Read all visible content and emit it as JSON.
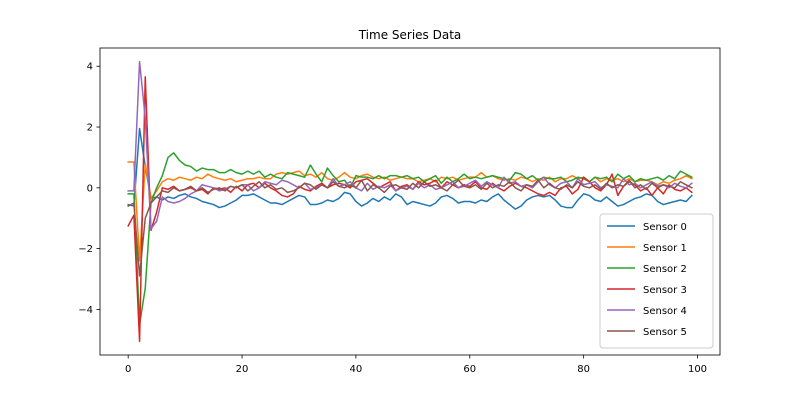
{
  "chart_data": {
    "type": "line",
    "title": "Time Series Data",
    "xlabel": "",
    "ylabel": "",
    "xlim": [
      -4.95,
      103.95
    ],
    "ylim": [
      -5.5,
      4.6
    ],
    "xticks": [
      0,
      20,
      40,
      60,
      80,
      100
    ],
    "yticks": [
      -4,
      -2,
      0,
      2,
      4
    ],
    "grid": false,
    "legend_position": "lower-right",
    "series": [
      {
        "name": "Sensor 0",
        "color": "#1f77b4",
        "values": [
          -0.55,
          -0.6,
          1.95,
          0.7,
          -0.35,
          -0.3,
          -0.4,
          -0.3,
          -0.35,
          -0.25,
          -0.2,
          -0.3,
          -0.35,
          -0.45,
          -0.5,
          -0.55,
          -0.65,
          -0.6,
          -0.5,
          -0.4,
          -0.25,
          -0.25,
          -0.2,
          -0.3,
          -0.4,
          -0.5,
          -0.5,
          -0.55,
          -0.45,
          -0.35,
          -0.25,
          -0.3,
          -0.55,
          -0.55,
          -0.5,
          -0.4,
          -0.45,
          -0.35,
          -0.15,
          -0.2,
          -0.45,
          -0.6,
          -0.5,
          -0.35,
          -0.45,
          -0.3,
          -0.4,
          -0.2,
          -0.3,
          -0.55,
          -0.45,
          -0.5,
          -0.55,
          -0.6,
          -0.5,
          -0.3,
          -0.25,
          -0.35,
          -0.5,
          -0.45,
          -0.45,
          -0.5,
          -0.4,
          -0.45,
          -0.3,
          -0.2,
          -0.4,
          -0.55,
          -0.7,
          -0.6,
          -0.4,
          -0.3,
          -0.25,
          -0.3,
          -0.25,
          -0.4,
          -0.6,
          -0.65,
          -0.65,
          -0.4,
          -0.2,
          -0.25,
          -0.4,
          -0.45,
          -0.3,
          -0.45,
          -0.6,
          -0.55,
          -0.45,
          -0.35,
          -0.3,
          -0.2,
          -0.25,
          -0.45,
          -0.55,
          -0.5,
          -0.45,
          -0.4,
          -0.45,
          -0.25
        ]
      },
      {
        "name": "Sensor 1",
        "color": "#ff7f0e",
        "values": [
          0.85,
          0.85,
          -2.4,
          0.8,
          -0.35,
          -0.1,
          0.2,
          0.3,
          0.25,
          0.35,
          0.3,
          0.25,
          0.35,
          0.3,
          0.45,
          0.35,
          0.3,
          0.25,
          0.3,
          0.2,
          0.25,
          0.3,
          0.3,
          0.35,
          0.3,
          0.3,
          0.45,
          0.5,
          0.45,
          0.5,
          0.55,
          0.4,
          0.45,
          0.35,
          0.5,
          0.3,
          0.25,
          0.35,
          0.5,
          0.35,
          0.3,
          0.4,
          0.45,
          0.35,
          0.3,
          0.35,
          0.25,
          0.3,
          0.35,
          0.3,
          0.3,
          0.2,
          0.25,
          0.3,
          0.2,
          0.35,
          0.3,
          0.35,
          0.25,
          0.3,
          0.35,
          0.35,
          0.5,
          0.35,
          0.4,
          0.3,
          0.25,
          0.3,
          0.25,
          0.35,
          0.3,
          0.2,
          0.3,
          0.25,
          0.35,
          0.2,
          0.3,
          0.3,
          0.4,
          0.3,
          0.35,
          0.2,
          0.35,
          0.2,
          0.3,
          0.25,
          0.3,
          0.2,
          0.3,
          0.2,
          0.25,
          0.25,
          0.2,
          0.1,
          0.2,
          0.15,
          0.25,
          0.3,
          0.4,
          0.3
        ]
      },
      {
        "name": "Sensor 2",
        "color": "#2ca02c",
        "values": [
          -0.2,
          -0.2,
          -4.5,
          -3.3,
          -0.5,
          0.0,
          0.4,
          1.0,
          1.15,
          0.9,
          0.75,
          0.7,
          0.55,
          0.65,
          0.6,
          0.6,
          0.5,
          0.5,
          0.6,
          0.5,
          0.45,
          0.55,
          0.45,
          0.55,
          0.35,
          0.45,
          0.35,
          0.3,
          0.5,
          0.45,
          0.4,
          0.35,
          0.75,
          0.45,
          0.2,
          0.65,
          0.4,
          0.2,
          0.25,
          0.0,
          0.4,
          0.35,
          0.35,
          0.3,
          0.4,
          0.3,
          0.4,
          0.4,
          0.35,
          0.4,
          0.3,
          0.35,
          0.2,
          0.3,
          0.4,
          0.15,
          0.35,
          0.2,
          0.3,
          0.45,
          0.3,
          0.35,
          0.3,
          0.35,
          0.4,
          0.35,
          0.3,
          0.25,
          0.5,
          0.45,
          0.3,
          0.4,
          0.25,
          0.35,
          0.3,
          0.3,
          0.35,
          0.2,
          0.25,
          0.35,
          0.3,
          0.2,
          0.35,
          0.3,
          0.35,
          0.2,
          0.45,
          0.3,
          0.4,
          0.2,
          0.3,
          0.25,
          0.3,
          0.35,
          0.25,
          0.4,
          0.3,
          0.55,
          0.45,
          0.35
        ]
      },
      {
        "name": "Sensor 3",
        "color": "#d62728",
        "values": [
          -1.25,
          -0.9,
          -5.05,
          3.65,
          -1.4,
          -0.8,
          0.0,
          -0.05,
          0.05,
          -0.1,
          -0.05,
          0.0,
          -0.1,
          -0.05,
          -0.2,
          0.0,
          -0.05,
          0.0,
          -0.15,
          0.05,
          -0.1,
          0.1,
          0.15,
          0.0,
          0.15,
          0.0,
          -0.1,
          -0.25,
          -0.3,
          -0.2,
          0.05,
          -0.05,
          -0.1,
          0.05,
          0.15,
          0.0,
          0.1,
          0.15,
          0.1,
          0.0,
          0.2,
          0.25,
          0.3,
          0.15,
          0.0,
          0.1,
          0.2,
          -0.1,
          0.05,
          0.1,
          -0.05,
          0.2,
          0.1,
          0.15,
          0.25,
          0.0,
          0.2,
          0.1,
          0.0,
          0.1,
          0.05,
          0.2,
          0.0,
          -0.05,
          0.15,
          0.0,
          -0.1,
          0.05,
          0.15,
          0.05,
          0.0,
          -0.1,
          -0.2,
          -0.25,
          -0.15,
          -0.25,
          0.0,
          0.05,
          -0.2,
          -0.05,
          0.35,
          0.2,
          0.0,
          -0.1,
          0.1,
          0.45,
          -0.25,
          0.05,
          0.2,
          0.1,
          -0.1,
          0.0,
          -0.25,
          0.0,
          -0.2,
          0.1,
          -0.05,
          -0.1,
          0.0,
          -0.15
        ]
      },
      {
        "name": "Sensor 4",
        "color": "#9467bd",
        "values": [
          -0.1,
          -0.1,
          4.15,
          2.3,
          -1.35,
          -1.1,
          -0.3,
          -0.45,
          -0.5,
          -0.45,
          -0.35,
          -0.2,
          -0.1,
          0.1,
          0.05,
          0.0,
          -0.1,
          -0.05,
          0.05,
          0.0,
          0.1,
          0.1,
          -0.1,
          0.0,
          0.2,
          0.15,
          0.1,
          0.25,
          0.2,
          0.1,
          0.0,
          0.15,
          -0.05,
          0.0,
          0.1,
          0.0,
          0.3,
          0.05,
          0.1,
          0.2,
          0.0,
          -0.1,
          0.15,
          -0.05,
          0.05,
          0.0,
          0.1,
          -0.1,
          0.0,
          0.05,
          -0.05,
          0.15,
          0.0,
          0.1,
          -0.05,
          0.0,
          0.1,
          0.2,
          0.0,
          0.05,
          0.15,
          0.25,
          0.05,
          0.2,
          0.1,
          0.0,
          0.35,
          0.15,
          0.2,
          0.05,
          0.1,
          0.0,
          0.2,
          0.35,
          0.1,
          0.0,
          0.15,
          0.2,
          0.0,
          0.3,
          0.1,
          0.15,
          0.2,
          0.0,
          0.1,
          0.05,
          0.0,
          0.3,
          0.1,
          0.15,
          0.0,
          0.1,
          0.2,
          0.05,
          0.1,
          0.0,
          0.15,
          0.05,
          0.0,
          0.15
        ]
      },
      {
        "name": "Sensor 5",
        "color": "#8c564b",
        "values": [
          -0.6,
          -0.5,
          -2.9,
          -1.0,
          -0.5,
          -0.3,
          -0.1,
          -0.15,
          0.0,
          -0.1,
          -0.05,
          0.05,
          -0.1,
          0.0,
          -0.15,
          -0.05,
          0.0,
          -0.1,
          0.05,
          0.0,
          0.1,
          -0.1,
          0.05,
          0.2,
          0.0,
          0.1,
          -0.05,
          0.0,
          -0.15,
          -0.1,
          0.0,
          0.15,
          0.1,
          -0.05,
          0.1,
          0.0,
          0.2,
          0.05,
          0.0,
          0.1,
          0.0,
          0.25,
          -0.1,
          0.1,
          0.0,
          -0.15,
          0.05,
          0.1,
          0.0,
          -0.05,
          0.15,
          0.0,
          0.2,
          0.05,
          0.1,
          0.0,
          -0.1,
          0.1,
          0.25,
          0.05,
          0.0,
          0.1,
          -0.05,
          0.15,
          0.0,
          0.1,
          0.05,
          0.2,
          0.0,
          -0.1,
          0.1,
          0.05,
          0.25,
          0.0,
          0.15,
          0.0,
          -0.05,
          0.1,
          0.0,
          0.2,
          0.05,
          0.0,
          0.1,
          -0.05,
          0.15,
          0.0,
          0.1,
          0.05,
          0.25,
          0.0,
          0.1,
          -0.05,
          0.15,
          0.0,
          0.1,
          0.05,
          0.0,
          0.2,
          0.1,
          0.0
        ]
      }
    ]
  }
}
